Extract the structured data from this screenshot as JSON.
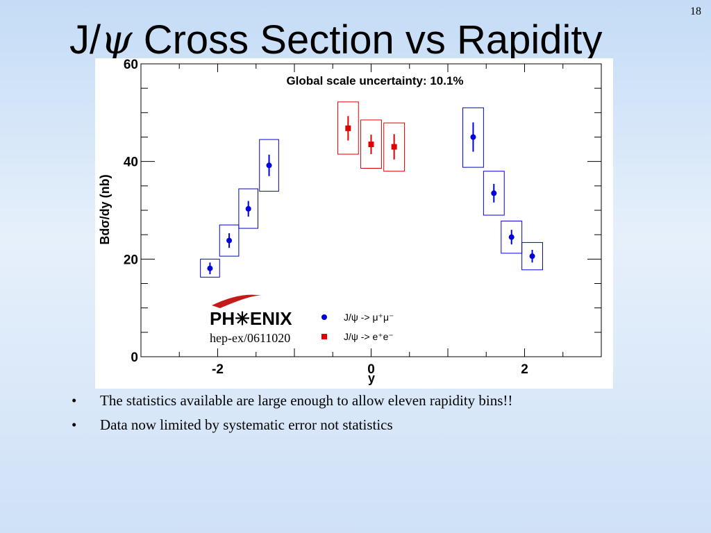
{
  "slide": {
    "number": "18",
    "title_pre": "J/",
    "title_sym": "ψ",
    "title_post": " Cross Section vs Rapidity"
  },
  "bullets": [
    "The statistics available are large enough to allow eleven rapidity bins!!",
    "Data now limited by systematic error not statistics"
  ],
  "colors": {
    "mumu": "#0000dd",
    "ee": "#dd0000"
  },
  "chart_data": {
    "type": "scatter",
    "annotation": "Global scale uncertainty: 10.1%",
    "xlabel": "y",
    "ylabel": "Bdσ/dy (nb)",
    "xlim": [
      -3,
      3
    ],
    "ylim": [
      0,
      60
    ],
    "x_ticks": [
      -2,
      0,
      2
    ],
    "x_tick_labels": [
      "-2",
      "0",
      "2"
    ],
    "y_ticks": [
      0,
      20,
      40,
      60
    ],
    "y_tick_labels": [
      "0",
      "20",
      "40",
      "60"
    ],
    "logo_text": "PH✳ENIX",
    "reference": "hep-ex/0611020",
    "legend": [
      {
        "label": "J/ψ -> μ⁺μ⁻",
        "marker": "circle",
        "color": "#0000dd"
      },
      {
        "label": "J/ψ -> e⁺e⁻",
        "marker": "square",
        "color": "#dd0000"
      }
    ],
    "series": [
      {
        "name": "J/ψ -> μ⁺μ⁻",
        "marker": "circle",
        "color": "#0000dd",
        "points": [
          {
            "x": -2.1,
            "y": 18.1,
            "stat": 1.2,
            "sys_lo": 16.3,
            "sys_hi": 20.0,
            "half_width": 0.125
          },
          {
            "x": -1.85,
            "y": 23.8,
            "stat": 1.5,
            "sys_lo": 20.6,
            "sys_hi": 27.0,
            "half_width": 0.125
          },
          {
            "x": -1.6,
            "y": 30.3,
            "stat": 1.6,
            "sys_lo": 26.3,
            "sys_hi": 34.4,
            "half_width": 0.125
          },
          {
            "x": -1.33,
            "y": 39.2,
            "stat": 2.2,
            "sys_lo": 33.9,
            "sys_hi": 44.5,
            "half_width": 0.125
          },
          {
            "x": 1.33,
            "y": 45.0,
            "stat": 3.0,
            "sys_lo": 38.8,
            "sys_hi": 51.0,
            "half_width": 0.135
          },
          {
            "x": 1.6,
            "y": 33.5,
            "stat": 1.9,
            "sys_lo": 29.0,
            "sys_hi": 38.0,
            "half_width": 0.135
          },
          {
            "x": 1.83,
            "y": 24.5,
            "stat": 1.5,
            "sys_lo": 21.2,
            "sys_hi": 27.8,
            "half_width": 0.135
          },
          {
            "x": 2.1,
            "y": 20.6,
            "stat": 1.3,
            "sys_lo": 17.8,
            "sys_hi": 23.4,
            "half_width": 0.135
          }
        ]
      },
      {
        "name": "J/ψ -> e⁺e⁻",
        "marker": "square",
        "color": "#dd0000",
        "points": [
          {
            "x": -0.3,
            "y": 46.8,
            "stat": 2.5,
            "sys_lo": 41.5,
            "sys_hi": 52.2,
            "half_width": 0.135
          },
          {
            "x": 0.0,
            "y": 43.5,
            "stat": 2.0,
            "sys_lo": 38.6,
            "sys_hi": 48.5,
            "half_width": 0.135
          },
          {
            "x": 0.3,
            "y": 43.0,
            "stat": 2.6,
            "sys_lo": 38.0,
            "sys_hi": 47.9,
            "half_width": 0.135
          }
        ]
      }
    ]
  }
}
